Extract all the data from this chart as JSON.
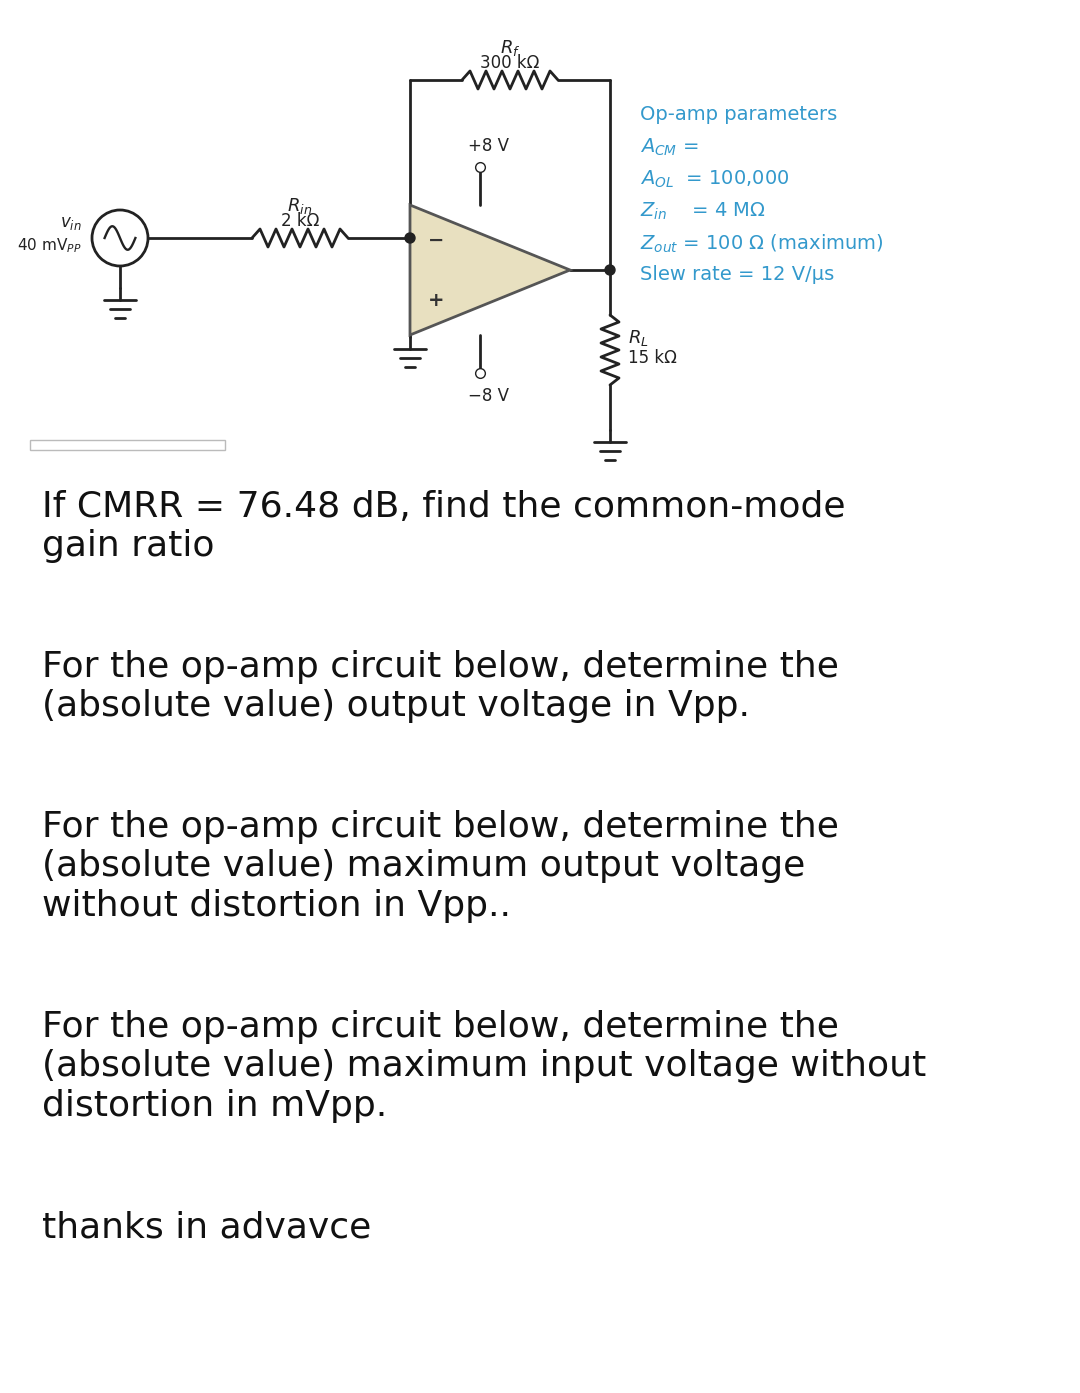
{
  "bg_color": "#ffffff",
  "circuit_color": "#222222",
  "opamp_fill": "#e8e0c0",
  "opamp_edge": "#555555",
  "text_color_blue": "#3399cc",
  "text_color_black": "#111111",
  "params_title": "Op-amp parameters",
  "q1": "If CMRR = 76.48 dB, find the common-mode\ngain ratio",
  "q2": "For the op-amp circuit below, determine the\n(absolute value) output voltage in Vpp.",
  "q3": "For the op-amp circuit below, determine the\n(absolute value) maximum output voltage\nwithout distortion in Vpp..",
  "q4": "For the op-amp circuit below, determine the\n(absolute value) maximum input voltage without\ndistortion in mVpp.",
  "q5": "thanks in advavce",
  "fig_width": 10.8,
  "fig_height": 13.93
}
